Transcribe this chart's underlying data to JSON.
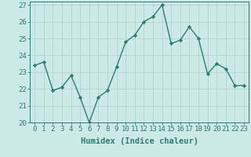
{
  "x": [
    0,
    1,
    2,
    3,
    4,
    5,
    6,
    7,
    8,
    9,
    10,
    11,
    12,
    13,
    14,
    15,
    16,
    17,
    18,
    19,
    20,
    21,
    22,
    23
  ],
  "y": [
    23.4,
    23.6,
    21.9,
    22.1,
    22.8,
    21.5,
    20.0,
    21.5,
    21.9,
    23.3,
    24.8,
    25.2,
    26.0,
    26.3,
    27.0,
    24.7,
    24.9,
    25.7,
    25.0,
    22.9,
    23.5,
    23.2,
    22.2,
    22.2
  ],
  "line_color": "#2e7d6e",
  "marker": "D",
  "marker_size": 2.2,
  "bg_color": "#cce9e7",
  "grid_color": "#b0d4d1",
  "xlabel": "Humidex (Indice chaleur)",
  "ylim": [
    20,
    27
  ],
  "xlim": [
    -0.5,
    23.5
  ],
  "yticks": [
    20,
    21,
    22,
    23,
    24,
    25,
    26,
    27
  ],
  "xticks": [
    0,
    1,
    2,
    3,
    4,
    5,
    6,
    7,
    8,
    9,
    10,
    11,
    12,
    13,
    14,
    15,
    16,
    17,
    18,
    19,
    20,
    21,
    22,
    23
  ],
  "xlabel_fontsize": 7.5,
  "tick_fontsize": 6.5,
  "line_width": 1.0
}
